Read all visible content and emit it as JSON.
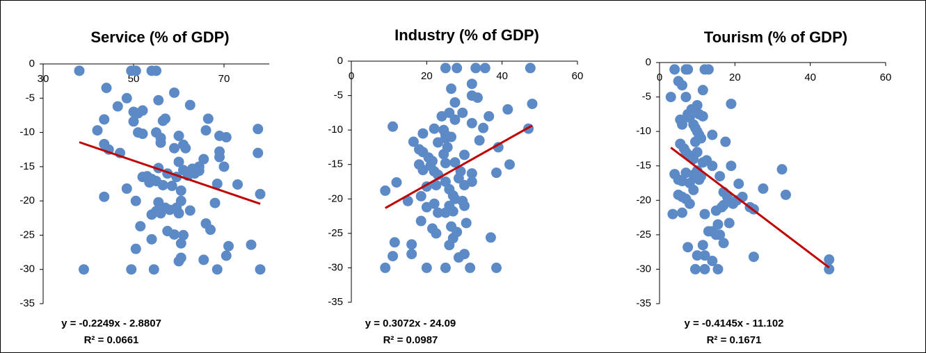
{
  "chart_data": [
    {
      "type": "scatter",
      "title": "Service (% of GDP)",
      "color": "#5b8ac6",
      "xlim": [
        30,
        80
      ],
      "ylim": [
        -35,
        0
      ],
      "xticks": [
        30,
        50,
        70
      ],
      "yticks": [
        0,
        -5,
        -10,
        -15,
        -20,
        -25,
        -30,
        -35
      ],
      "x": [
        38,
        44,
        49.5,
        50.5,
        54,
        55,
        59,
        46.5,
        48.5,
        50,
        51,
        52,
        55.5,
        57,
        56.5,
        62.5,
        66.5,
        42,
        43.5,
        50,
        51,
        52,
        55,
        56,
        56,
        59,
        60,
        61,
        61.5,
        66,
        69,
        70.5,
        77.5,
        43.5,
        44.5,
        69,
        69,
        70,
        73,
        77.5,
        65.5,
        64.5,
        63,
        61,
        60,
        59.5,
        57.5,
        55.5,
        53,
        54,
        53.5,
        55,
        56.5,
        58.5,
        60.5,
        48.5,
        50.5,
        43.5,
        55.5,
        57,
        58,
        59.5,
        60,
        62.5,
        56,
        54,
        51.5,
        57.5,
        59,
        54,
        61,
        60.5,
        66,
        67,
        71,
        76,
        60.5,
        60,
        65.5,
        68.5,
        70.5,
        50.5,
        39,
        49.5,
        54.5,
        78,
        78,
        68,
        68.5,
        47,
        63.5,
        64.5,
        62,
        55,
        52,
        60.5
      ],
      "values": [
        -1,
        -3.5,
        -1,
        -1,
        -1,
        -1,
        -4.2,
        -6.2,
        -5,
        -7,
        -7.2,
        -6.8,
        -5.3,
        -8,
        -8.3,
        -6,
        -8,
        -9.7,
        -8.1,
        -8.4,
        -10,
        -10.2,
        -10,
        -10.8,
        -11.5,
        -12.3,
        -10.5,
        -11.8,
        -12.3,
        -9.7,
        -10.5,
        -10.7,
        -9.5,
        -11.7,
        -12.5,
        -12.8,
        -13.6,
        -15,
        -17.6,
        -13,
        -13.9,
        -15,
        -15.3,
        -15.5,
        -14.3,
        -16.5,
        -16,
        -15.2,
        -16.4,
        -16.8,
        -17.3,
        -17.1,
        -17.7,
        -17.8,
        -18.5,
        -18.2,
        -20,
        -19.4,
        -20.2,
        -21,
        -21.3,
        -21,
        -21.8,
        -21.4,
        -21.8,
        -22,
        -23.7,
        -24.4,
        -24.9,
        -25.6,
        -25,
        -26.2,
        -23.3,
        -24.2,
        -26.6,
        -26.4,
        -28.3,
        -28.8,
        -28.6,
        -30,
        -28,
        -27,
        -30,
        -30,
        -30,
        -30,
        -19,
        -20.3,
        -17.5,
        -13,
        -16,
        -15.6,
        -16.3,
        -21.5,
        -16.5,
        -20
      ],
      "trendline": {
        "slope": -0.2249,
        "intercept": -2.8807,
        "color": "#c00000",
        "equation": "y = -0.2249x - 2.8807",
        "r_squared": "R² = 0.0661"
      }
    },
    {
      "type": "scatter",
      "title": "Industry (% of GDP)",
      "color": "#5b8ac6",
      "xlim": [
        0,
        60
      ],
      "ylim": [
        -35,
        0
      ],
      "xticks": [
        0,
        20,
        40,
        60
      ],
      "yticks": [
        0,
        -5,
        -10,
        -15,
        -20,
        -25,
        -30,
        -35
      ],
      "x": [
        25,
        28,
        33,
        35.5,
        47.5,
        32,
        26.5,
        27.5,
        29.5,
        26,
        24,
        32,
        33.5,
        36.5,
        41.5,
        47,
        48,
        11,
        19,
        22,
        24.5,
        25,
        25,
        23,
        26.5,
        27.5,
        32,
        35,
        34,
        16.5,
        18,
        19,
        20.5,
        21.5,
        24.5,
        25.5,
        25,
        27.5,
        30,
        39,
        42,
        18,
        19,
        21,
        22,
        23,
        25,
        22.5,
        20,
        26,
        27,
        30,
        28.5,
        29,
        32,
        32,
        38.5,
        9,
        12,
        15,
        18.5,
        20,
        22,
        26,
        27,
        27.5,
        30,
        29.5,
        23,
        25,
        18.5,
        21.5,
        22.5,
        26.5,
        28,
        30.5,
        27,
        26,
        11.5,
        16,
        11,
        16,
        28.5,
        30,
        9,
        20,
        25,
        31.5,
        38.5,
        37
      ],
      "values": [
        -1,
        -1,
        -1,
        -1,
        -1,
        -3.3,
        -4,
        -6,
        -7.5,
        -7.5,
        -8,
        -5,
        -5.3,
        -8,
        -7,
        -9.8,
        -6.2,
        -9.5,
        -10.5,
        -9.8,
        -10,
        -10.7,
        -11.2,
        -11.8,
        -11,
        -8.5,
        -9,
        -9.7,
        -11.5,
        -11.7,
        -12.8,
        -13.2,
        -14,
        -14.5,
        -13.5,
        -12.5,
        -14.8,
        -14.7,
        -13.6,
        -12.5,
        -15,
        -15,
        -15.8,
        -15.2,
        -16,
        -16.5,
        -17.5,
        -18,
        -18.2,
        -18.6,
        -19.5,
        -18,
        -17,
        -16,
        -16.3,
        -17.5,
        -16.2,
        -18.8,
        -17.6,
        -20.3,
        -19.6,
        -21.2,
        -20.7,
        -21,
        -21.8,
        -20,
        -21,
        -20.3,
        -22,
        -22,
        -23.2,
        -24.3,
        -25,
        -24,
        -24.8,
        -23.5,
        -25.7,
        -26.7,
        -26.3,
        -26.6,
        -28.3,
        -28,
        -28.5,
        -28,
        -30,
        -30,
        -30,
        -30,
        -30,
        -25.6
      ],
      "trendline": {
        "slope": 0.3072,
        "intercept": -24.09,
        "color": "#c00000",
        "equation": "y = 0.3072x - 24.09",
        "r_squared": "R² = 0.0987"
      }
    },
    {
      "type": "scatter",
      "title": "Tourism (% of GDP)",
      "color": "#5b8ac6",
      "xlim": [
        0,
        60
      ],
      "ylim": [
        -35,
        0
      ],
      "xticks": [
        0,
        20,
        40,
        60
      ],
      "yticks": [
        0,
        -5,
        -10,
        -15,
        -20,
        -25,
        -30,
        -35
      ],
      "x": [
        4,
        7,
        7.5,
        12,
        13,
        3,
        5,
        6,
        7,
        11.5,
        19,
        8.5,
        7.5,
        8,
        5.5,
        6,
        10,
        10.5,
        11.5,
        9,
        9.5,
        10,
        10.5,
        11,
        9.5,
        14,
        17.5,
        5.5,
        6.5,
        7,
        8,
        9,
        10,
        11.5,
        12.5,
        14,
        16,
        19,
        21,
        27.5,
        32.5,
        33.5,
        4,
        5,
        6,
        7,
        8,
        9,
        10,
        10.5,
        11,
        5,
        6,
        7,
        8,
        9,
        17,
        18,
        19.5,
        20.5,
        22,
        24,
        25,
        15,
        16.5,
        17,
        3.5,
        6,
        12,
        13,
        14,
        15,
        16,
        15.5,
        17,
        18.5,
        11.5,
        7.5,
        10,
        12,
        14,
        25,
        45,
        9.5,
        12,
        15.5,
        45
      ],
      "values": [
        -1,
        -1,
        -1,
        -1,
        -1,
        -5,
        -2.7,
        -3.3,
        -5,
        -4,
        -6,
        -6.8,
        -7.5,
        -8,
        -8.3,
        -9,
        -6.2,
        -7.5,
        -7.8,
        -9,
        -9.5,
        -10,
        -10.5,
        -11,
        -11.5,
        -10.5,
        -11.5,
        -11.8,
        -12.5,
        -13,
        -13.5,
        -14,
        -13,
        -14.5,
        -14.2,
        -15,
        -16.5,
        -15,
        -17.6,
        -18.3,
        -15.5,
        -19.2,
        -16.2,
        -17,
        -17.2,
        -16,
        -17.5,
        -16.3,
        -15.7,
        -17,
        -16.5,
        -19.2,
        -19.5,
        -19.8,
        -20.5,
        -18.5,
        -18.8,
        -19.5,
        -20.5,
        -20,
        -19.5,
        -21,
        -21.3,
        -21.5,
        -21,
        -20.7,
        -22,
        -21.8,
        -22,
        -24.5,
        -24.5,
        -25,
        -25,
        -23.5,
        -26.2,
        -23.3,
        -26.5,
        -26.8,
        -28,
        -28,
        -28.8,
        -28.2,
        -28.6,
        -30,
        -30,
        -30,
        -30
      ],
      "trendline": {
        "slope": -0.4145,
        "intercept": -11.102,
        "color": "#c00000",
        "equation": "y = -0.4145x - 11.102",
        "r_squared": "R² = 0.1671"
      }
    }
  ]
}
